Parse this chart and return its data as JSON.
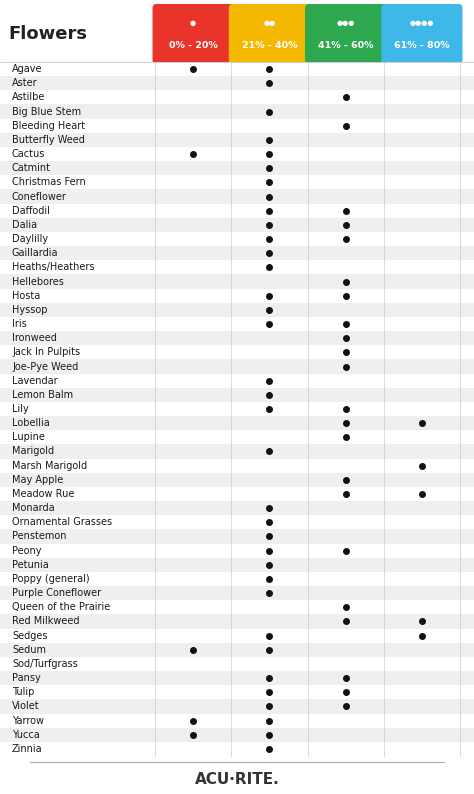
{
  "title": "Flowers",
  "columns": [
    "0% - 20%",
    "21% - 40%",
    "41% - 60%",
    "61% - 80%"
  ],
  "col_colors": [
    "#e8342a",
    "#f5b800",
    "#2da84e",
    "#3db8e8"
  ],
  "plants": [
    "Agave",
    "Aster",
    "Astilbe",
    "Big Blue Stem",
    "Bleeding Heart",
    "Butterfly Weed",
    "Cactus",
    "Catmint",
    "Christmas Fern",
    "Coneflower",
    "Daffodil",
    "Dalia",
    "Daylilly",
    "Gaillardia",
    "Heaths/Heathers",
    "Hellebores",
    "Hosta",
    "Hyssop",
    "Iris",
    "Ironweed",
    "Jack In Pulpits",
    "Joe-Pye Weed",
    "Lavendar",
    "Lemon Balm",
    "Lily",
    "Lobellia",
    "Lupine",
    "Marigold",
    "Marsh Marigold",
    "May Apple",
    "Meadow Rue",
    "Monarda",
    "Ornamental Grasses",
    "Penstemon",
    "Peony",
    "Petunia",
    "Poppy (general)",
    "Purple Coneflower",
    "Queen of the Prairie",
    "Red Milkweed",
    "Sedges",
    "Sedum",
    "Sod/Turfgrass",
    "Pansy",
    "Tulip",
    "Violet",
    "Yarrow",
    "Yucca",
    "Zinnia"
  ],
  "dots": {
    "Agave": [
      1,
      1,
      0,
      0
    ],
    "Aster": [
      0,
      1,
      0,
      0
    ],
    "Astilbe": [
      0,
      0,
      1,
      0
    ],
    "Big Blue Stem": [
      0,
      1,
      0,
      0
    ],
    "Bleeding Heart": [
      0,
      0,
      1,
      0
    ],
    "Butterfly Weed": [
      0,
      1,
      0,
      0
    ],
    "Cactus": [
      1,
      1,
      0,
      0
    ],
    "Catmint": [
      0,
      1,
      0,
      0
    ],
    "Christmas Fern": [
      0,
      1,
      0,
      0
    ],
    "Coneflower": [
      0,
      1,
      0,
      0
    ],
    "Daffodil": [
      0,
      1,
      1,
      0
    ],
    "Dalia": [
      0,
      1,
      1,
      0
    ],
    "Daylilly": [
      0,
      1,
      1,
      0
    ],
    "Gaillardia": [
      0,
      1,
      0,
      0
    ],
    "Heaths/Heathers": [
      0,
      1,
      0,
      0
    ],
    "Hellebores": [
      0,
      0,
      1,
      0
    ],
    "Hosta": [
      0,
      1,
      1,
      0
    ],
    "Hyssop": [
      0,
      1,
      0,
      0
    ],
    "Iris": [
      0,
      1,
      1,
      0
    ],
    "Ironweed": [
      0,
      0,
      1,
      0
    ],
    "Jack In Pulpits": [
      0,
      0,
      1,
      0
    ],
    "Joe-Pye Weed": [
      0,
      0,
      1,
      0
    ],
    "Lavendar": [
      0,
      1,
      0,
      0
    ],
    "Lemon Balm": [
      0,
      1,
      0,
      0
    ],
    "Lily": [
      0,
      1,
      1,
      0
    ],
    "Lobellia": [
      0,
      0,
      1,
      1
    ],
    "Lupine": [
      0,
      0,
      1,
      0
    ],
    "Marigold": [
      0,
      1,
      0,
      0
    ],
    "Marsh Marigold": [
      0,
      0,
      0,
      1
    ],
    "May Apple": [
      0,
      0,
      1,
      0
    ],
    "Meadow Rue": [
      0,
      0,
      1,
      1
    ],
    "Monarda": [
      0,
      1,
      0,
      0
    ],
    "Ornamental Grasses": [
      0,
      1,
      0,
      0
    ],
    "Penstemon": [
      0,
      1,
      0,
      0
    ],
    "Peony": [
      0,
      1,
      1,
      0
    ],
    "Petunia": [
      0,
      1,
      0,
      0
    ],
    "Poppy (general)": [
      0,
      1,
      0,
      0
    ],
    "Purple Coneflower": [
      0,
      1,
      0,
      0
    ],
    "Queen of the Prairie": [
      0,
      0,
      1,
      0
    ],
    "Red Milkweed": [
      0,
      0,
      1,
      1
    ],
    "Sedges": [
      0,
      1,
      0,
      1
    ],
    "Sedum": [
      1,
      1,
      0,
      0
    ],
    "Sod/Turfgrass": [
      0,
      0,
      0,
      0
    ],
    "Pansy": [
      0,
      1,
      1,
      0
    ],
    "Tulip": [
      0,
      1,
      1,
      0
    ],
    "Violet": [
      0,
      1,
      1,
      0
    ],
    "Yarrow": [
      1,
      1,
      0,
      0
    ],
    "Yucca": [
      1,
      1,
      0,
      0
    ],
    "Zinnia": [
      0,
      1,
      0,
      0
    ]
  },
  "bg_color": "#ffffff",
  "row_alt_color": "#efefef",
  "row_white_color": "#ffffff",
  "dot_color": "#111111",
  "footer_text": "ACU·RITE.",
  "figsize": [
    4.74,
    7.94
  ],
  "dpi": 100
}
